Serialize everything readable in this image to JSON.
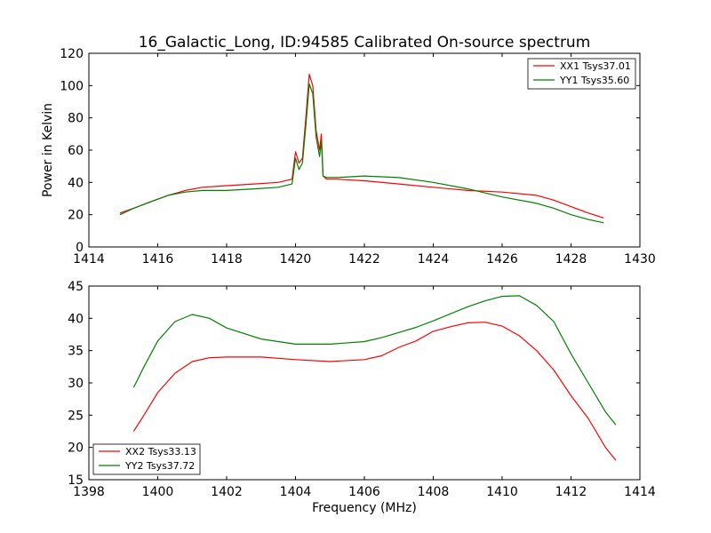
{
  "chart_data": [
    {
      "type": "line",
      "title": "16_Galactic_Long, ID:94585 Calibrated On-source spectrum",
      "xlabel": "",
      "ylabel": "Power in Kelvin",
      "xlim": [
        1414,
        1430
      ],
      "ylim": [
        0,
        120
      ],
      "xticks": [
        "1414",
        "1416",
        "1418",
        "1420",
        "1422",
        "1424",
        "1426",
        "1428",
        "1430"
      ],
      "yticks": [
        "0",
        "20",
        "40",
        "60",
        "80",
        "100",
        "120"
      ],
      "grid": false,
      "legend_position": "top-right",
      "series": [
        {
          "name": "XX1 Tsys37.01",
          "color": "#ff0000",
          "x": [
            1414.9,
            1415.3,
            1415.8,
            1416.3,
            1416.8,
            1417.3,
            1418.0,
            1418.8,
            1419.5,
            1419.9,
            1420.0,
            1420.1,
            1420.2,
            1420.3,
            1420.4,
            1420.5,
            1420.6,
            1420.7,
            1420.75,
            1420.8,
            1420.9,
            1421.2,
            1422.0,
            1423.0,
            1424.0,
            1425.0,
            1426.0,
            1427.0,
            1427.5,
            1428.0,
            1428.5,
            1428.95
          ],
          "y": [
            21,
            24,
            28,
            32,
            35,
            37,
            38,
            39,
            40,
            42,
            59,
            52,
            55,
            80,
            107,
            100,
            72,
            60,
            70,
            44,
            42,
            42,
            41,
            39,
            37,
            35,
            34,
            32,
            29,
            25,
            21,
            18
          ]
        },
        {
          "name": "YY1 Tsys35.60",
          "color": "#008000",
          "x": [
            1414.9,
            1415.3,
            1415.8,
            1416.3,
            1416.8,
            1417.3,
            1418.0,
            1418.8,
            1419.5,
            1419.9,
            1420.0,
            1420.1,
            1420.2,
            1420.3,
            1420.4,
            1420.5,
            1420.6,
            1420.7,
            1420.75,
            1420.8,
            1420.9,
            1421.2,
            1422.0,
            1423.0,
            1424.0,
            1425.0,
            1426.0,
            1427.0,
            1427.5,
            1428.0,
            1428.5,
            1428.95
          ],
          "y": [
            20,
            24,
            28,
            32,
            34,
            35,
            35,
            36,
            37,
            39,
            55,
            48,
            52,
            75,
            101,
            95,
            68,
            56,
            66,
            44,
            43,
            43,
            44,
            43,
            40,
            36,
            31,
            27,
            24,
            20,
            17,
            15
          ]
        }
      ]
    },
    {
      "type": "line",
      "title": "",
      "xlabel": "Frequency (MHz)",
      "ylabel": "",
      "xlim": [
        1398,
        1414
      ],
      "ylim": [
        15,
        45
      ],
      "xticks": [
        "1398",
        "1400",
        "1402",
        "1404",
        "1406",
        "1408",
        "1410",
        "1412",
        "1414"
      ],
      "yticks": [
        "15",
        "20",
        "25",
        "30",
        "35",
        "40",
        "45"
      ],
      "grid": false,
      "legend_position": "bottom-left",
      "series": [
        {
          "name": "XX2 Tsys33.13",
          "color": "#ff0000",
          "x": [
            1399.3,
            1399.6,
            1400.0,
            1400.5,
            1401.0,
            1401.5,
            1402.0,
            1403.0,
            1404.0,
            1405.0,
            1406.0,
            1406.5,
            1407.0,
            1407.5,
            1408.0,
            1408.5,
            1409.0,
            1409.5,
            1410.0,
            1410.5,
            1411.0,
            1411.5,
            1412.0,
            1412.5,
            1413.0,
            1413.3
          ],
          "y": [
            22.5,
            25,
            28.5,
            31.5,
            33.3,
            33.9,
            34,
            34,
            33.6,
            33.3,
            33.6,
            34.2,
            35.5,
            36.5,
            38,
            38.7,
            39.3,
            39.4,
            38.8,
            37.3,
            35,
            32,
            28,
            24.5,
            20,
            18
          ]
        },
        {
          "name": "YY2 Tsys37.72",
          "color": "#008000",
          "x": [
            1399.3,
            1399.6,
            1400.0,
            1400.5,
            1401.0,
            1401.5,
            1402.0,
            1403.0,
            1404.0,
            1405.0,
            1406.0,
            1406.5,
            1407.0,
            1407.5,
            1408.0,
            1408.5,
            1409.0,
            1409.5,
            1410.0,
            1410.5,
            1411.0,
            1411.5,
            1412.0,
            1412.5,
            1413.0,
            1413.3
          ],
          "y": [
            29.3,
            32.5,
            36.5,
            39.5,
            40.6,
            40,
            38.5,
            36.8,
            36,
            36,
            36.4,
            37,
            37.8,
            38.6,
            39.6,
            40.7,
            41.8,
            42.7,
            43.4,
            43.5,
            42,
            39.5,
            34.5,
            30,
            25.5,
            23.5
          ]
        }
      ]
    }
  ]
}
